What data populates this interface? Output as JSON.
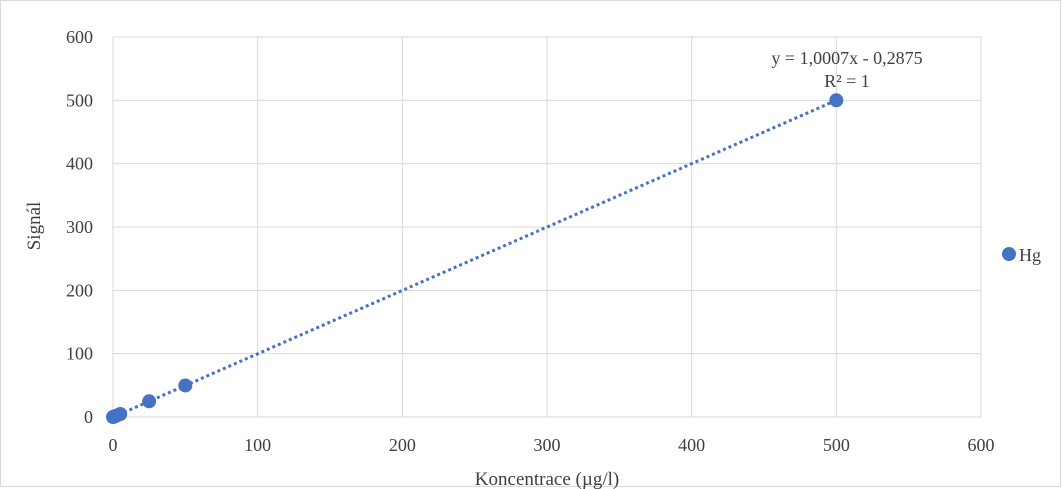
{
  "chart_data": {
    "type": "scatter",
    "title": "",
    "xlabel": "Koncentrace (µg/l)",
    "ylabel": "Signál",
    "xlim": [
      0,
      600
    ],
    "ylim": [
      0,
      600
    ],
    "x_ticks": [
      0,
      100,
      200,
      300,
      400,
      500,
      600
    ],
    "y_ticks": [
      0,
      100,
      200,
      300,
      400,
      500,
      600
    ],
    "x_tick_labels": [
      "0",
      "100",
      "200",
      "300",
      "400",
      "500",
      "600"
    ],
    "y_tick_labels": [
      "0",
      "100",
      "200",
      "300",
      "400",
      "500",
      "600"
    ],
    "grid": true,
    "legend_position": "right",
    "series": [
      {
        "name": "Hg",
        "color": "#4472c4",
        "x": [
          0,
          0.5,
          1,
          2.5,
          5,
          25,
          50,
          500
        ],
        "y": [
          0,
          0.3,
          0.8,
          2.2,
          4.7,
          24.8,
          49.8,
          500.1
        ]
      }
    ],
    "trendline": {
      "type": "linear",
      "slope": 1.0007,
      "intercept": -0.2875,
      "style": "dotted",
      "color": "#4472c4",
      "equation_label": "y = 1,0007x - 0,2875",
      "r2_label": "R² = 1"
    }
  }
}
